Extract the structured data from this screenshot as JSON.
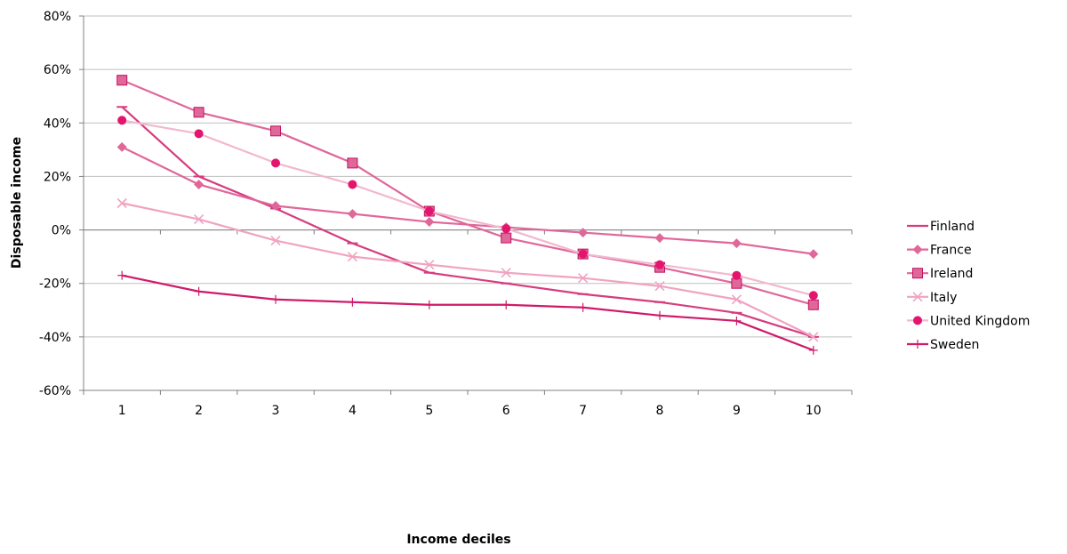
{
  "chart_data": {
    "type": "line",
    "title": "",
    "xlabel": "Income deciles",
    "ylabel": "Disposable income",
    "categories": [
      "1",
      "2",
      "3",
      "4",
      "5",
      "6",
      "7",
      "8",
      "9",
      "10"
    ],
    "ylim": [
      -60,
      80
    ],
    "yticks": [
      -60,
      -40,
      -20,
      0,
      20,
      40,
      60,
      80
    ],
    "ytick_labels": [
      "-60%",
      "-40%",
      "-20%",
      "0%",
      "20%",
      "40%",
      "60%",
      "80%"
    ],
    "grid": "horizontal",
    "legend_position": "right",
    "series": [
      {
        "name": "Finland",
        "color": "#d63c7e",
        "marker": "dash",
        "values": [
          46,
          20,
          8,
          -5,
          -16,
          -20,
          -24,
          -27,
          -31,
          -40
        ]
      },
      {
        "name": "France",
        "color": "#e0679a",
        "marker": "diamond",
        "values": [
          31,
          17,
          9,
          6,
          3,
          1,
          -1,
          -3,
          -5,
          -9
        ]
      },
      {
        "name": "Ireland",
        "color": "#e0679a",
        "marker": "square",
        "values": [
          56,
          44,
          37,
          25,
          7,
          -3,
          -9,
          -14,
          -20,
          -28
        ]
      },
      {
        "name": "Italy",
        "color": "#f0a3c1",
        "marker": "x",
        "values": [
          10,
          4,
          -4,
          -10,
          -13,
          -16,
          -18,
          -21,
          -26,
          -40
        ]
      },
      {
        "name": "United Kingdom",
        "color": "#f2b8cf",
        "marker": "circle",
        "values": [
          41,
          36,
          25,
          17,
          7,
          0.5,
          -9,
          -13,
          -17,
          -24.5
        ]
      },
      {
        "name": "Sweden",
        "color": "#cf1a6a",
        "marker": "plus",
        "values": [
          -17,
          -23,
          -26,
          -27,
          -28,
          -28,
          -29,
          -32,
          -34,
          -45
        ]
      }
    ]
  }
}
